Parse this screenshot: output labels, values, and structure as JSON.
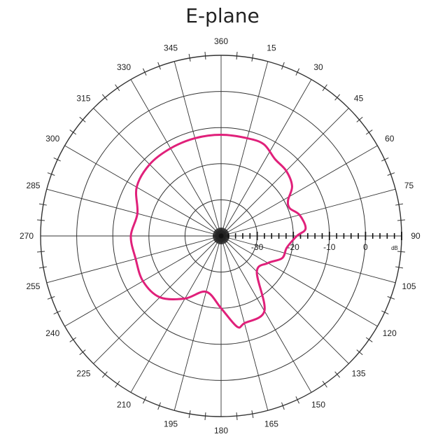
{
  "chart_data": {
    "type": "polar-line",
    "title": "E-plane",
    "angle_labels": [
      "360",
      "15",
      "30",
      "45",
      "60",
      "75",
      "90",
      "105",
      "120",
      "135",
      "150",
      "165",
      "180",
      "195",
      "210",
      "225",
      "240",
      "255",
      "270",
      "285",
      "300",
      "315",
      "330",
      "345"
    ],
    "radial_ticks": [
      "-30",
      "-20",
      "-10",
      "0"
    ],
    "radial_unit": "dB",
    "radial_range_db": [
      -40,
      10
    ],
    "ring_step_db": 10,
    "angle_step_deg": 15,
    "direction": "clockwise",
    "zero_at": "top",
    "grid": true,
    "series": [
      {
        "color": "#e0207a",
        "angle_deg": [
          0,
          15,
          25,
          35,
          45,
          55,
          62,
          68,
          75,
          85,
          90,
          100,
          110,
          120,
          135,
          150,
          165,
          170,
          180,
          195,
          210,
          225,
          240,
          255,
          270,
          285,
          300,
          315,
          330,
          345,
          360
        ],
        "value_db": [
          -12,
          -12,
          -12,
          -14,
          -14.5,
          -16,
          -19,
          -19.5,
          -17.5,
          -16.5,
          -19,
          -21.5,
          -22,
          -25,
          -26,
          -16,
          -15,
          -14.5,
          -20,
          -24,
          -20,
          -16,
          -15,
          -15.5,
          -15,
          -16,
          -13,
          -12,
          -12,
          -12,
          -12
        ]
      }
    ]
  }
}
